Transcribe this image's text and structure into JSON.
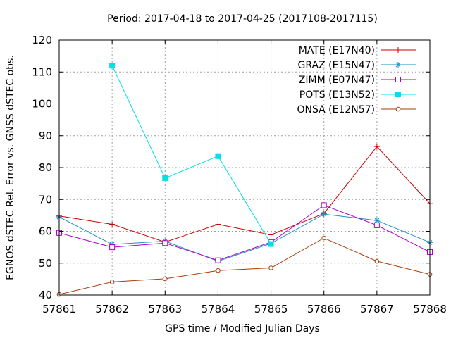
{
  "chart_data": {
    "type": "line",
    "title": "Period: 2017-04-18 to 2017-04-25 (2017108-2017115)",
    "xlabel": "GPS time / Modified Julian Days",
    "ylabel": "EGNOS dSTEC Rel. Error vs. GNSS dSTEC obs.",
    "xlim": [
      57861,
      57868
    ],
    "ylim": [
      40,
      120
    ],
    "xticks": [
      "57861",
      "57862",
      "57863",
      "57864",
      "57865",
      "57866",
      "57867",
      "57868"
    ],
    "yticks": [
      "40",
      "50",
      "60",
      "70",
      "80",
      "90",
      "100",
      "110",
      "120"
    ],
    "grid": true,
    "legend_position": "top-right",
    "series": [
      {
        "name": "MATE (E17N40)",
        "color": "#cc0000",
        "marker": "plus",
        "x": [
          57861,
          57862,
          57863,
          57864,
          57865,
          57866,
          57867,
          57868
        ],
        "values": [
          64.8,
          62.2,
          56.6,
          62.2,
          58.9,
          65.6,
          86.6,
          68.7
        ]
      },
      {
        "name": "GRAZ (E15N47)",
        "color": "#1a8fc4",
        "marker": "star",
        "x": [
          57861,
          57862,
          57863,
          57864,
          57865,
          57866,
          57867,
          57868
        ],
        "values": [
          64.5,
          55.9,
          56.9,
          50.6,
          56.2,
          65.4,
          63.4,
          56.5
        ]
      },
      {
        "name": "ZIMM (E07N47)",
        "color": "#b000c8",
        "marker": "open-square",
        "x": [
          57861,
          57862,
          57863,
          57864,
          57865,
          57866,
          57867,
          57868
        ],
        "values": [
          59.5,
          55.0,
          56.3,
          50.9,
          56.6,
          68.2,
          61.9,
          53.5
        ]
      },
      {
        "name": "POTS (E13N52)",
        "color": "#00e0e8",
        "marker": "filled-square",
        "x": [
          57862,
          57863,
          57864,
          57865
        ],
        "values": [
          112.0,
          76.7,
          83.6,
          56.0
        ]
      },
      {
        "name": "ONSA (E12N57)",
        "color": "#a83c0a",
        "marker": "open-circle",
        "x": [
          57861,
          57862,
          57863,
          57864,
          57865,
          57866,
          57867,
          57868
        ],
        "values": [
          40.2,
          44.1,
          45.1,
          47.7,
          48.5,
          57.9,
          50.6,
          46.5
        ]
      }
    ]
  }
}
